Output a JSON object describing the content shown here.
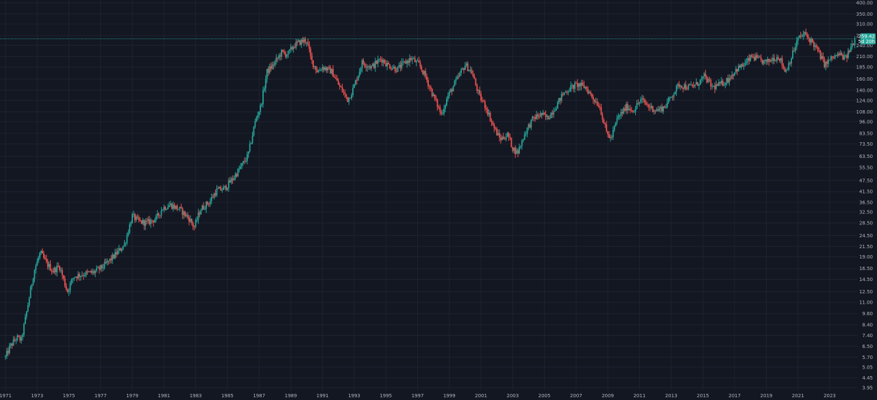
{
  "chart_data": {
    "type": "candlestick",
    "scale": "log",
    "grid": true,
    "colors": {
      "background": "#131722",
      "up": "#26a69a",
      "down": "#ef5350",
      "grid": "#1e2330",
      "text": "#b2b5be",
      "price_line": "#26a69a",
      "badge": "#26a69a"
    },
    "y_ticks": [
      "3.95",
      "4.45",
      "5.05",
      "5.70",
      "6.50",
      "7.40",
      "8.40",
      "9.60",
      "11.00",
      "12.50",
      "14.50",
      "16.50",
      "19.00",
      "21.50",
      "24.50",
      "28.50",
      "32.50",
      "36.50",
      "41.50",
      "47.50",
      "55.50",
      "63.50",
      "73.50",
      "83.50",
      "96.00",
      "108.00",
      "124.00",
      "140.00",
      "160.00",
      "185.00",
      "210.00",
      "240.00",
      "270.00",
      "310.00",
      "350.00",
      "400.00"
    ],
    "x_ticks": [
      {
        "label": "1971",
        "year": 1971
      },
      {
        "label": "1973",
        "year": 1973
      },
      {
        "label": "1975",
        "year": 1975
      },
      {
        "label": "1977",
        "year": 1977
      },
      {
        "label": "1979",
        "year": 1979
      },
      {
        "label": "1981",
        "year": 1981
      },
      {
        "label": "1983",
        "year": 1983
      },
      {
        "label": "1985",
        "year": 1985
      },
      {
        "label": "1987",
        "year": 1987
      },
      {
        "label": "1989",
        "year": 1989
      },
      {
        "label": "1991",
        "year": 1991
      },
      {
        "label": "1993",
        "year": 1993
      },
      {
        "label": "1995",
        "year": 1995
      },
      {
        "label": "1997",
        "year": 1997
      },
      {
        "label": "1999",
        "year": 1999
      },
      {
        "label": "2001",
        "year": 2001
      },
      {
        "label": "2003",
        "year": 2003
      },
      {
        "label": "2005",
        "year": 2005
      },
      {
        "label": "2007",
        "year": 2007
      },
      {
        "label": "2009",
        "year": 2009
      },
      {
        "label": "2011",
        "year": 2011
      },
      {
        "label": "2013",
        "year": 2013
      },
      {
        "label": "2015",
        "year": 2015
      },
      {
        "label": "2017",
        "year": 2017
      },
      {
        "label": "2019",
        "year": 2019
      },
      {
        "label": "2021",
        "year": 2021
      },
      {
        "label": "2023",
        "year": 2023
      }
    ],
    "x_range": [
      1971.0,
      2024.6
    ],
    "y_range": [
      3.95,
      400
    ],
    "last_price": 259.42,
    "last_price_label": "259.42",
    "countdown_label": "5d 20h",
    "path": [
      [
        1971.0,
        5.7
      ],
      [
        1971.3,
        6.5
      ],
      [
        1971.7,
        7.2
      ],
      [
        1972.0,
        7.0
      ],
      [
        1972.4,
        10.5
      ],
      [
        1972.8,
        16.0
      ],
      [
        1973.2,
        20.0
      ],
      [
        1973.6,
        17.5
      ],
      [
        1974.0,
        16.0
      ],
      [
        1974.4,
        17.0
      ],
      [
        1974.9,
        12.5
      ],
      [
        1975.3,
        15.0
      ],
      [
        1976.0,
        15.5
      ],
      [
        1976.6,
        15.8
      ],
      [
        1977.2,
        17.0
      ],
      [
        1977.8,
        19.0
      ],
      [
        1978.5,
        22.0
      ],
      [
        1979.0,
        31.0
      ],
      [
        1979.4,
        29.0
      ],
      [
        1979.9,
        28.5
      ],
      [
        1980.5,
        30.0
      ],
      [
        1980.9,
        34.0
      ],
      [
        1981.4,
        35.5
      ],
      [
        1982.0,
        33.5
      ],
      [
        1982.6,
        30.0
      ],
      [
        1982.9,
        27.0
      ],
      [
        1983.3,
        33.5
      ],
      [
        1983.9,
        37.0
      ],
      [
        1984.3,
        42.0
      ],
      [
        1984.8,
        43.0
      ],
      [
        1985.3,
        48.0
      ],
      [
        1985.8,
        55.0
      ],
      [
        1986.3,
        64.0
      ],
      [
        1986.8,
        100.0
      ],
      [
        1987.1,
        115.0
      ],
      [
        1987.5,
        175.0
      ],
      [
        1987.9,
        190.0
      ],
      [
        1988.4,
        220.0
      ],
      [
        1988.8,
        215.0
      ],
      [
        1989.2,
        240.0
      ],
      [
        1989.6,
        250.0
      ],
      [
        1990.0,
        255.0
      ],
      [
        1990.3,
        200.0
      ],
      [
        1990.7,
        175.0
      ],
      [
        1991.0,
        185.0
      ],
      [
        1991.6,
        175.0
      ],
      [
        1992.0,
        150.0
      ],
      [
        1992.6,
        125.0
      ],
      [
        1992.9,
        140.0
      ],
      [
        1993.5,
        195.0
      ],
      [
        1994.1,
        185.0
      ],
      [
        1994.7,
        205.0
      ],
      [
        1995.1,
        190.0
      ],
      [
        1995.7,
        180.0
      ],
      [
        1996.2,
        195.0
      ],
      [
        1996.6,
        205.0
      ],
      [
        1997.1,
        190.0
      ],
      [
        1997.5,
        165.0
      ],
      [
        1998.0,
        130.0
      ],
      [
        1998.5,
        105.0
      ],
      [
        1998.9,
        130.0
      ],
      [
        1999.5,
        160.0
      ],
      [
        2000.0,
        190.0
      ],
      [
        2000.4,
        175.0
      ],
      [
        2000.9,
        130.0
      ],
      [
        2001.3,
        115.0
      ],
      [
        2001.8,
        90.0
      ],
      [
        2002.2,
        78.0
      ],
      [
        2002.7,
        82.0
      ],
      [
        2003.0,
        70.0
      ],
      [
        2003.3,
        66.0
      ],
      [
        2003.8,
        85.0
      ],
      [
        2004.3,
        100.0
      ],
      [
        2004.8,
        105.0
      ],
      [
        2005.2,
        100.0
      ],
      [
        2005.7,
        115.0
      ],
      [
        2006.2,
        135.0
      ],
      [
        2006.7,
        145.0
      ],
      [
        2007.1,
        150.0
      ],
      [
        2007.6,
        145.0
      ],
      [
        2008.0,
        130.0
      ],
      [
        2008.5,
        115.0
      ],
      [
        2008.9,
        85.0
      ],
      [
        2009.2,
        78.0
      ],
      [
        2009.6,
        100.0
      ],
      [
        2010.2,
        115.0
      ],
      [
        2010.6,
        110.0
      ],
      [
        2011.1,
        125.0
      ],
      [
        2011.6,
        115.0
      ],
      [
        2012.1,
        110.0
      ],
      [
        2012.6,
        115.0
      ],
      [
        2013.0,
        130.0
      ],
      [
        2013.5,
        150.0
      ],
      [
        2014.1,
        145.0
      ],
      [
        2014.6,
        150.0
      ],
      [
        2015.1,
        165.0
      ],
      [
        2015.6,
        145.0
      ],
      [
        2016.1,
        150.0
      ],
      [
        2016.6,
        160.0
      ],
      [
        2017.1,
        180.0
      ],
      [
        2017.6,
        190.0
      ],
      [
        2018.1,
        210.0
      ],
      [
        2018.6,
        200.0
      ],
      [
        2019.0,
        195.0
      ],
      [
        2019.4,
        205.0
      ],
      [
        2019.8,
        210.0
      ],
      [
        2020.2,
        175.0
      ],
      [
        2020.6,
        210.0
      ],
      [
        2021.0,
        260.0
      ],
      [
        2021.4,
        275.0
      ],
      [
        2021.9,
        250.0
      ],
      [
        2022.3,
        220.0
      ],
      [
        2022.7,
        190.0
      ],
      [
        2023.1,
        205.0
      ],
      [
        2023.6,
        215.0
      ],
      [
        2024.0,
        205.0
      ],
      [
        2024.4,
        240.0
      ],
      [
        2024.6,
        259.42
      ]
    ]
  }
}
